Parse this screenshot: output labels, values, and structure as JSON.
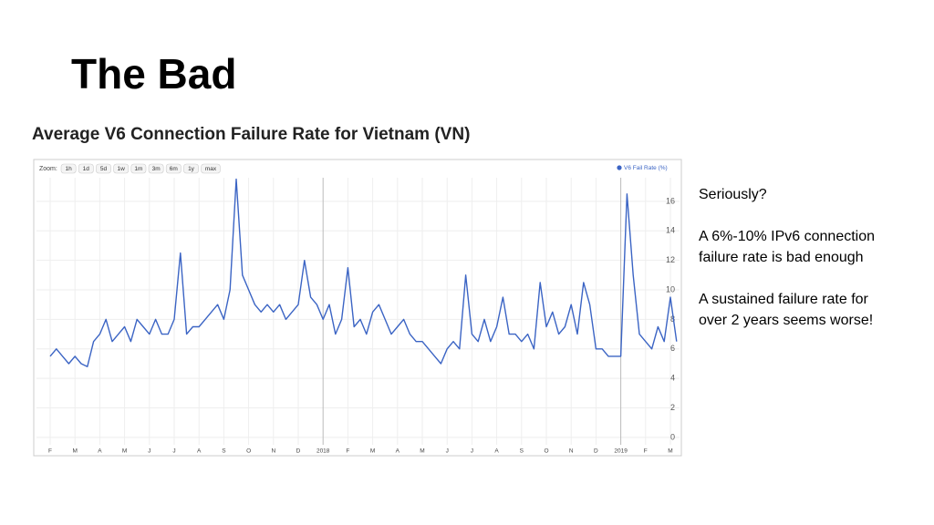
{
  "slide": {
    "title": "The Bad",
    "notes": [
      "Seriously?",
      "A 6%-10% IPv6 connection failure rate is bad enough",
      "A sustained failure rate for over 2 years seems worse!"
    ]
  },
  "chart_data": {
    "type": "line",
    "title": "Average V6 Connection Failure Rate for Vietnam (VN)",
    "zoom_label": "Zoom:",
    "zoom_options": [
      "1h",
      "1d",
      "5d",
      "1w",
      "1m",
      "3m",
      "6m",
      "1y",
      "max"
    ],
    "categories": [
      "F",
      null,
      null,
      null,
      "M",
      null,
      null,
      null,
      "A",
      null,
      null,
      null,
      "M",
      null,
      null,
      null,
      "J",
      null,
      null,
      null,
      "J",
      null,
      null,
      null,
      "A",
      null,
      null,
      null,
      "S",
      null,
      null,
      null,
      "O",
      null,
      null,
      null,
      "N",
      null,
      null,
      null,
      "D",
      null,
      null,
      null,
      "2018",
      null,
      null,
      null,
      "F",
      null,
      null,
      null,
      "M",
      null,
      null,
      null,
      "A",
      null,
      null,
      null,
      "M",
      null,
      null,
      null,
      "J",
      null,
      null,
      null,
      "J",
      null,
      null,
      null,
      "A",
      null,
      null,
      null,
      "S",
      null,
      null,
      null,
      "O",
      null,
      null,
      null,
      "N",
      null,
      null,
      null,
      "D",
      null,
      null,
      null,
      "2019",
      null,
      null,
      null,
      "F",
      null,
      null,
      null,
      "M",
      null
    ],
    "series": [
      {
        "name": "V6 Fail Rate (%)",
        "color": "#3b64c4",
        "values": [
          5.5,
          6,
          5.5,
          5,
          5.5,
          5,
          4.8,
          6.5,
          7,
          8,
          6.5,
          7,
          7.5,
          6.5,
          8,
          7.5,
          7,
          8,
          7,
          7,
          8,
          12.5,
          7,
          7.5,
          7.5,
          8,
          8.5,
          9,
          8,
          10,
          17.5,
          11,
          10,
          9,
          8.5,
          9,
          8.5,
          9,
          8,
          8.5,
          9,
          12,
          9.5,
          9,
          8,
          9,
          7,
          8,
          11.5,
          7.5,
          8,
          7,
          8.5,
          9,
          8,
          7,
          7.5,
          8,
          7,
          6.5,
          6.5,
          6,
          5.5,
          5,
          6,
          6.5,
          6,
          11,
          7,
          6.5,
          8,
          6.5,
          7.5,
          9.5,
          7,
          7,
          6.5,
          7,
          6,
          10.5,
          7.5,
          8.5,
          7,
          7.5,
          9,
          7,
          10.5,
          9,
          6,
          6,
          5.5,
          5.5,
          5.5,
          16.5,
          11,
          7,
          6.5,
          6,
          7.5,
          6.5,
          9.5,
          6.5
        ]
      }
    ],
    "ylim": [
      -0.5,
      17.6
    ],
    "yticks": [
      0,
      2,
      4,
      6,
      8,
      10,
      12,
      14,
      16
    ],
    "grid": true
  }
}
